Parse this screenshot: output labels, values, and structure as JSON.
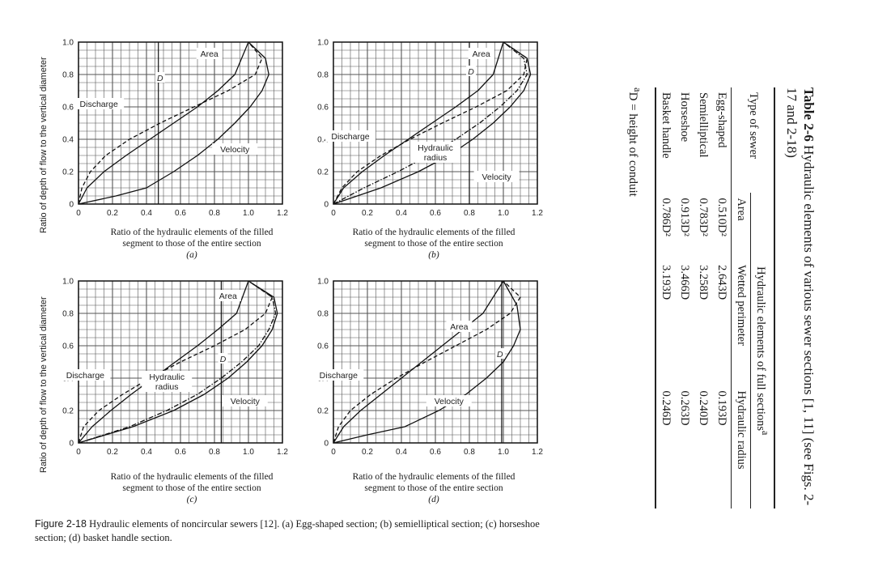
{
  "figure": {
    "ylabel": "Ratio of depth of flow to the vertical diameter",
    "xlabel_line1": "Ratio of the hydraulic elements of the filled",
    "xlabel_line2": "segment to those of the entire section",
    "x_ticks": [
      "0",
      "0.2",
      "0.4",
      "0.6",
      "0.8",
      "1.0",
      "1.2"
    ],
    "y_ticks": [
      "1.0",
      "0.8",
      "0.6",
      "0.4",
      "0.2",
      "0"
    ],
    "d_label": "D",
    "caption_label": "Figure 2-18",
    "caption_text": "Hydraulic elements of noncircular sewers [12]. (a) Egg-shaped section; (b) semielliptical section; (c) horseshoe section; (d) basket handle section."
  },
  "chart_data": [
    {
      "type": "line",
      "panel": "(a)",
      "xlim": [
        0,
        1.2
      ],
      "ylim": [
        0,
        1.0
      ],
      "grid": true,
      "xlabel": "Ratio of the hydraulic elements of the filled segment to those of the entire section",
      "ylabel": "Ratio of depth of flow to the vertical diameter",
      "labels": [
        "Area",
        "Discharge",
        "Velocity"
      ],
      "series": [
        {
          "name": "Area",
          "style": "solid",
          "x": [
            0,
            0.05,
            0.15,
            0.28,
            0.42,
            0.56,
            0.7,
            0.82,
            0.92,
            1.0
          ],
          "y": [
            0,
            0.1,
            0.2,
            0.3,
            0.4,
            0.5,
            0.6,
            0.7,
            0.8,
            1.0
          ]
        },
        {
          "name": "Discharge",
          "style": "dashed",
          "x": [
            0,
            0.02,
            0.07,
            0.16,
            0.3,
            0.48,
            0.68,
            0.88,
            1.04,
            1.08,
            1.0
          ],
          "y": [
            0,
            0.1,
            0.2,
            0.3,
            0.4,
            0.5,
            0.6,
            0.7,
            0.8,
            0.9,
            1.0
          ]
        },
        {
          "name": "Velocity",
          "style": "solid",
          "x": [
            0,
            0.22,
            0.4,
            0.56,
            0.7,
            0.82,
            0.92,
            1.01,
            1.08,
            1.12,
            1.1,
            1.0
          ],
          "y": [
            0,
            0.05,
            0.1,
            0.2,
            0.3,
            0.4,
            0.5,
            0.6,
            0.7,
            0.8,
            0.9,
            1.0
          ]
        }
      ]
    },
    {
      "type": "line",
      "panel": "(b)",
      "xlim": [
        0,
        1.2
      ],
      "ylim": [
        0,
        1.0
      ],
      "grid": true,
      "xlabel": "Ratio of the hydraulic elements of the filled segment to those of the entire section",
      "labels": [
        "Area",
        "Discharge",
        "Hydraulic radius",
        "Velocity"
      ],
      "series": [
        {
          "name": "Area",
          "style": "solid",
          "x": [
            0,
            0.06,
            0.17,
            0.3,
            0.44,
            0.58,
            0.72,
            0.85,
            0.94,
            1.0
          ],
          "y": [
            0,
            0.1,
            0.2,
            0.3,
            0.4,
            0.5,
            0.6,
            0.7,
            0.8,
            1.0
          ]
        },
        {
          "name": "Discharge",
          "style": "dashed",
          "x": [
            0,
            0.05,
            0.14,
            0.28,
            0.45,
            0.64,
            0.84,
            1.02,
            1.12,
            1.14,
            1.0
          ],
          "y": [
            0,
            0.1,
            0.2,
            0.3,
            0.4,
            0.5,
            0.6,
            0.7,
            0.8,
            0.9,
            1.0
          ]
        },
        {
          "name": "Hydraulic radius",
          "style": "dash-dot",
          "x": [
            0,
            0.18,
            0.38,
            0.56,
            0.72,
            0.86,
            0.98,
            1.08,
            1.14,
            1.12,
            1.0
          ],
          "y": [
            0,
            0.1,
            0.2,
            0.3,
            0.4,
            0.5,
            0.6,
            0.7,
            0.8,
            0.9,
            1.0
          ]
        },
        {
          "name": "Velocity",
          "style": "solid",
          "x": [
            0,
            0.28,
            0.5,
            0.68,
            0.82,
            0.94,
            1.04,
            1.12,
            1.16,
            1.14,
            1.0
          ],
          "y": [
            0,
            0.1,
            0.2,
            0.3,
            0.4,
            0.5,
            0.6,
            0.7,
            0.8,
            0.9,
            1.0
          ]
        }
      ]
    },
    {
      "type": "line",
      "panel": "(c)",
      "xlim": [
        0,
        1.2
      ],
      "ylim": [
        0,
        1.0
      ],
      "grid": true,
      "xlabel": "Ratio of the hydraulic elements of the filled segment to those of the entire section",
      "ylabel": "Ratio of depth of flow to the vertical diameter",
      "labels": [
        "Area",
        "Discharge",
        "Hydraulic radius",
        "Velocity"
      ],
      "series": [
        {
          "name": "Area",
          "style": "solid",
          "x": [
            0,
            0.08,
            0.19,
            0.31,
            0.44,
            0.57,
            0.7,
            0.82,
            0.93,
            1.0
          ],
          "y": [
            0,
            0.1,
            0.2,
            0.3,
            0.4,
            0.5,
            0.6,
            0.7,
            0.8,
            1.0
          ]
        },
        {
          "name": "Discharge",
          "style": "dashed",
          "x": [
            0,
            0.03,
            0.12,
            0.26,
            0.42,
            0.6,
            0.8,
            0.98,
            1.1,
            1.14,
            1.0
          ],
          "y": [
            0,
            0.1,
            0.2,
            0.3,
            0.4,
            0.5,
            0.6,
            0.7,
            0.8,
            0.9,
            1.0
          ]
        },
        {
          "name": "Hydraulic radius",
          "style": "dash-dot",
          "x": [
            0,
            0.3,
            0.52,
            0.7,
            0.84,
            0.96,
            1.06,
            1.12,
            1.16,
            1.14,
            1.0
          ],
          "y": [
            0,
            0.1,
            0.2,
            0.3,
            0.4,
            0.5,
            0.6,
            0.7,
            0.8,
            0.9,
            1.0
          ]
        },
        {
          "name": "Velocity",
          "style": "solid",
          "x": [
            0,
            0.32,
            0.56,
            0.74,
            0.88,
            0.99,
            1.08,
            1.14,
            1.17,
            1.15,
            1.0
          ],
          "y": [
            0,
            0.1,
            0.2,
            0.3,
            0.4,
            0.5,
            0.6,
            0.7,
            0.8,
            0.9,
            1.0
          ]
        }
      ]
    },
    {
      "type": "line",
      "panel": "(d)",
      "xlim": [
        0,
        1.2
      ],
      "ylim": [
        0,
        1.0
      ],
      "grid": true,
      "xlabel": "Ratio of the hydraulic elements of the filled segment to those of the entire section",
      "labels": [
        "Area",
        "Discharge",
        "Velocity"
      ],
      "series": [
        {
          "name": "Area",
          "style": "solid",
          "x": [
            0,
            0.06,
            0.16,
            0.28,
            0.4,
            0.52,
            0.64,
            0.76,
            0.88,
            1.0
          ],
          "y": [
            0,
            0.1,
            0.2,
            0.3,
            0.4,
            0.5,
            0.6,
            0.7,
            0.8,
            1.0
          ]
        },
        {
          "name": "Discharge",
          "style": "dashed",
          "x": [
            0,
            0.03,
            0.1,
            0.22,
            0.37,
            0.54,
            0.72,
            0.9,
            1.04,
            1.1,
            1.0
          ],
          "y": [
            0,
            0.1,
            0.2,
            0.3,
            0.4,
            0.5,
            0.6,
            0.7,
            0.8,
            0.9,
            1.0
          ]
        },
        {
          "name": "Velocity",
          "style": "solid",
          "x": [
            0,
            0.2,
            0.42,
            0.62,
            0.78,
            0.9,
            1.0,
            1.06,
            1.1,
            1.08,
            1.0
          ],
          "y": [
            0,
            0.05,
            0.1,
            0.2,
            0.3,
            0.4,
            0.5,
            0.6,
            0.7,
            0.85,
            1.0
          ]
        }
      ]
    }
  ],
  "table": {
    "title_num": "Table 2-6",
    "title_text": "Hydraulic elements of various sewer sections [1, 11] (see Figs. 2-17 and 2-18)",
    "col_type": "Type of sewer",
    "group_header": "Hydraulic elements of full sections",
    "group_marker": "a",
    "col_area": "Area",
    "col_wetted": "Wetted perimeter",
    "col_radius": "Hydraulic radius",
    "rows": [
      {
        "type": "Egg-shaped",
        "area": "0.510D²",
        "wetted": "2.643D",
        "radius": "0.193D"
      },
      {
        "type": "Semielliptical",
        "area": "0.783D²",
        "wetted": "3.258D",
        "radius": "0.240D"
      },
      {
        "type": "Horseshoe",
        "area": "0.913D²",
        "wetted": "3.466D",
        "radius": "0.263D"
      },
      {
        "type": "Basket handle",
        "area": "0.786D²",
        "wetted": "3.193D",
        "radius": "0.246D"
      }
    ],
    "footnote_marker": "a",
    "footnote_text": "D = height of conduit"
  }
}
